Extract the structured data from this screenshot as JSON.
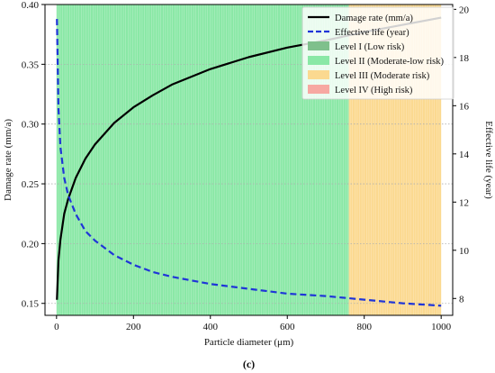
{
  "chart_data": {
    "type": "line",
    "caption": "(c)",
    "xlabel": "Particle diameter (μm)",
    "ylabel_left": "Damage rate (mm/a)",
    "ylabel_right": "Effective life (year)",
    "xlim": [
      -30,
      1030
    ],
    "ylim_left": [
      0.14,
      0.4
    ],
    "ylim_right": [
      7.3,
      20.2
    ],
    "x_ticks": [
      0,
      200,
      400,
      600,
      800,
      1000
    ],
    "y_left_ticks": [
      0.15,
      0.2,
      0.25,
      0.3,
      0.35,
      0.4
    ],
    "y_left_tick_labels": [
      "0.15",
      "0.20",
      "0.25",
      "0.30",
      "0.35",
      "0.40"
    ],
    "y_right_ticks": [
      8,
      10,
      12,
      14,
      16,
      18,
      20
    ],
    "grid": "horizontal dotted",
    "legend_position": "top-right",
    "risk_regions": [
      {
        "name": "Level I (Low risk)",
        "x_range": null,
        "color": "#7fc08c"
      },
      {
        "name": "Level II (Moderate-low risk)",
        "x_range": [
          0,
          760
        ],
        "color": "#8ae8a6"
      },
      {
        "name": "Level III (Moderate risk)",
        "x_range": [
          760,
          1000
        ],
        "color": "#fbd990"
      },
      {
        "name": "Level IV (High risk)",
        "x_range": null,
        "color": "#f7a8a2"
      }
    ],
    "series": [
      {
        "name": "Damage rate (mm/a)",
        "axis": "left",
        "color": "#000000",
        "style": "solid",
        "x": [
          1,
          5,
          10,
          20,
          30,
          50,
          75,
          100,
          150,
          200,
          250,
          300,
          400,
          500,
          600,
          700,
          800,
          900,
          1000
        ],
        "y": [
          0.153,
          0.186,
          0.203,
          0.225,
          0.237,
          0.255,
          0.271,
          0.283,
          0.301,
          0.314,
          0.324,
          0.333,
          0.346,
          0.356,
          0.364,
          0.37,
          0.377,
          0.383,
          0.389
        ]
      },
      {
        "name": "Effective life (year)",
        "axis": "right",
        "color": "#1f35d8",
        "style": "dashed",
        "x": [
          1,
          5,
          10,
          20,
          30,
          50,
          75,
          100,
          150,
          200,
          250,
          300,
          400,
          500,
          600,
          700,
          800,
          900,
          1000
        ],
        "y": [
          19.6,
          15.9,
          14.3,
          13.0,
          12.3,
          11.5,
          10.8,
          10.4,
          9.8,
          9.4,
          9.1,
          8.9,
          8.6,
          8.4,
          8.2,
          8.1,
          7.95,
          7.8,
          7.7
        ]
      }
    ]
  }
}
